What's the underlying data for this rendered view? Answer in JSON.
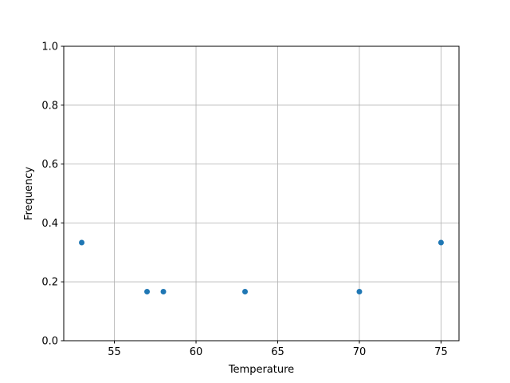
{
  "chart_data": {
    "type": "scatter",
    "title": "",
    "xlabel": "Temperature",
    "ylabel": "Frequency",
    "xlim": [
      51.9,
      76.1
    ],
    "ylim": [
      0,
      1
    ],
    "xticks": [
      55,
      60,
      65,
      70,
      75
    ],
    "yticks": [
      0.0,
      0.2,
      0.4,
      0.6,
      0.8,
      1.0
    ],
    "xtick_labels": [
      "55",
      "60",
      "65",
      "70",
      "75"
    ],
    "ytick_labels": [
      "0.0",
      "0.2",
      "0.4",
      "0.6",
      "0.8",
      "1.0"
    ],
    "grid": true,
    "color": "#1f77b4",
    "x": [
      53,
      57,
      58,
      63,
      70,
      75
    ],
    "y": [
      0.3333,
      0.1667,
      0.1667,
      0.1667,
      0.1667,
      0.3333
    ]
  }
}
